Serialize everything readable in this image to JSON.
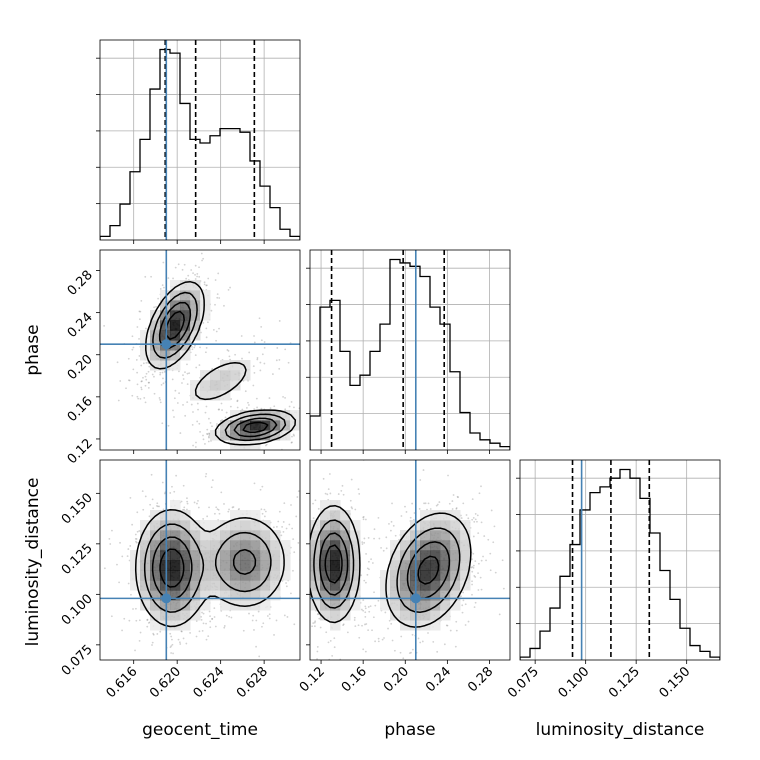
{
  "chart_data": {
    "type": "corner",
    "parameters": [
      "geocent_time",
      "phase",
      "luminosity_distance"
    ],
    "axis_labels": {
      "geocent_time": "geocent_time",
      "phase": "phase",
      "luminosity_distance": "luminosity_distance"
    },
    "ranges": {
      "geocent_time": [
        0.6129,
        0.6313
      ],
      "phase": [
        0.1095,
        0.2995
      ],
      "luminosity_distance": [
        0.0675,
        0.1665
      ]
    },
    "ticks": {
      "geocent_time": [
        "0.616",
        "0.620",
        "0.624",
        "0.628"
      ],
      "phase": [
        "0.12",
        "0.16",
        "0.20",
        "0.24",
        "0.28"
      ],
      "luminosity_distance": [
        "0.075",
        "0.100",
        "0.125",
        "0.150"
      ],
      "luminosity_distance_y": [
        "0.075",
        "0.100",
        "0.125",
        "0.150"
      ]
    },
    "truths": {
      "geocent_time": 0.619,
      "phase": 0.21,
      "luminosity_distance": 0.098
    },
    "quantiles": {
      "geocent_time": [
        0.6189,
        0.6217,
        0.6271
      ],
      "phase": [
        0.13,
        0.198,
        0.237
      ],
      "luminosity_distance": [
        0.0935,
        0.1125,
        0.1315
      ]
    },
    "histograms": {
      "geocent_time": [
        1,
        4,
        10,
        19,
        28,
        42,
        53,
        52,
        38,
        28,
        27,
        29,
        31,
        31,
        30,
        22,
        15,
        9,
        3,
        1
      ],
      "phase": [
        10,
        42,
        44,
        29,
        19,
        22,
        29,
        37,
        56,
        55,
        54,
        51,
        42,
        37,
        23,
        11,
        5,
        3,
        2,
        1
      ],
      "luminosity_distance": [
        1,
        4,
        10,
        18,
        29,
        40,
        52,
        58,
        60,
        63,
        66,
        63,
        56,
        44,
        31,
        21,
        11,
        5,
        3,
        1
      ]
    },
    "grid": true,
    "colors": {
      "truth": "#4682b4",
      "quantile": "#000000",
      "hist": "#000000",
      "grid": "#b0b0b0",
      "scatter": "#7f7f7f"
    }
  }
}
